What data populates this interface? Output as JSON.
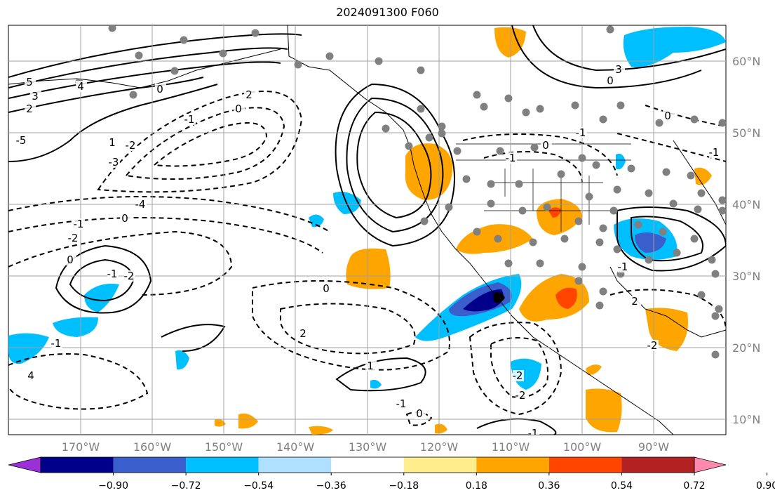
{
  "title": "2024091300 F060",
  "map": {
    "lat_labels": [
      "60°N",
      "50°N",
      "40°N",
      "30°N",
      "20°N",
      "10°N"
    ],
    "lon_labels": [
      "170°W",
      "160°W",
      "150°W",
      "140°W",
      "130°W",
      "120°W",
      "110°W",
      "100°W",
      "90°W"
    ],
    "contour_labels": [
      "5",
      "3",
      "2",
      "4",
      "0",
      "1",
      "-2",
      "-1",
      "0",
      "2",
      "-3",
      "-5",
      "-4",
      "0",
      "-1",
      "-2",
      "0",
      "-1",
      "-2",
      "0",
      "2",
      "1",
      "-1",
      "0",
      "-1",
      "4",
      "3",
      "0",
      "-1",
      "-2",
      "-2",
      "-1",
      "2",
      "-2",
      "-1",
      "-1",
      "0",
      "0",
      "-1"
    ],
    "colors": {
      "land_outline": "#000000",
      "grid": "#a0a0a0",
      "station_dot": "#808080"
    }
  },
  "colorbar": {
    "ticks": [
      "−0.90",
      "−0.72",
      "−0.54",
      "−0.36",
      "−0.18",
      "0.18",
      "0.36",
      "0.54",
      "0.72",
      "0.90"
    ],
    "colors": [
      "#9b30d9",
      "#00008b",
      "#3a5fcd",
      "#00bfff",
      "#b0e0ff",
      "#ffffff",
      "#ffec8b",
      "#ffa500",
      "#ff4500",
      "#b22222",
      "#ff8aad"
    ]
  }
}
